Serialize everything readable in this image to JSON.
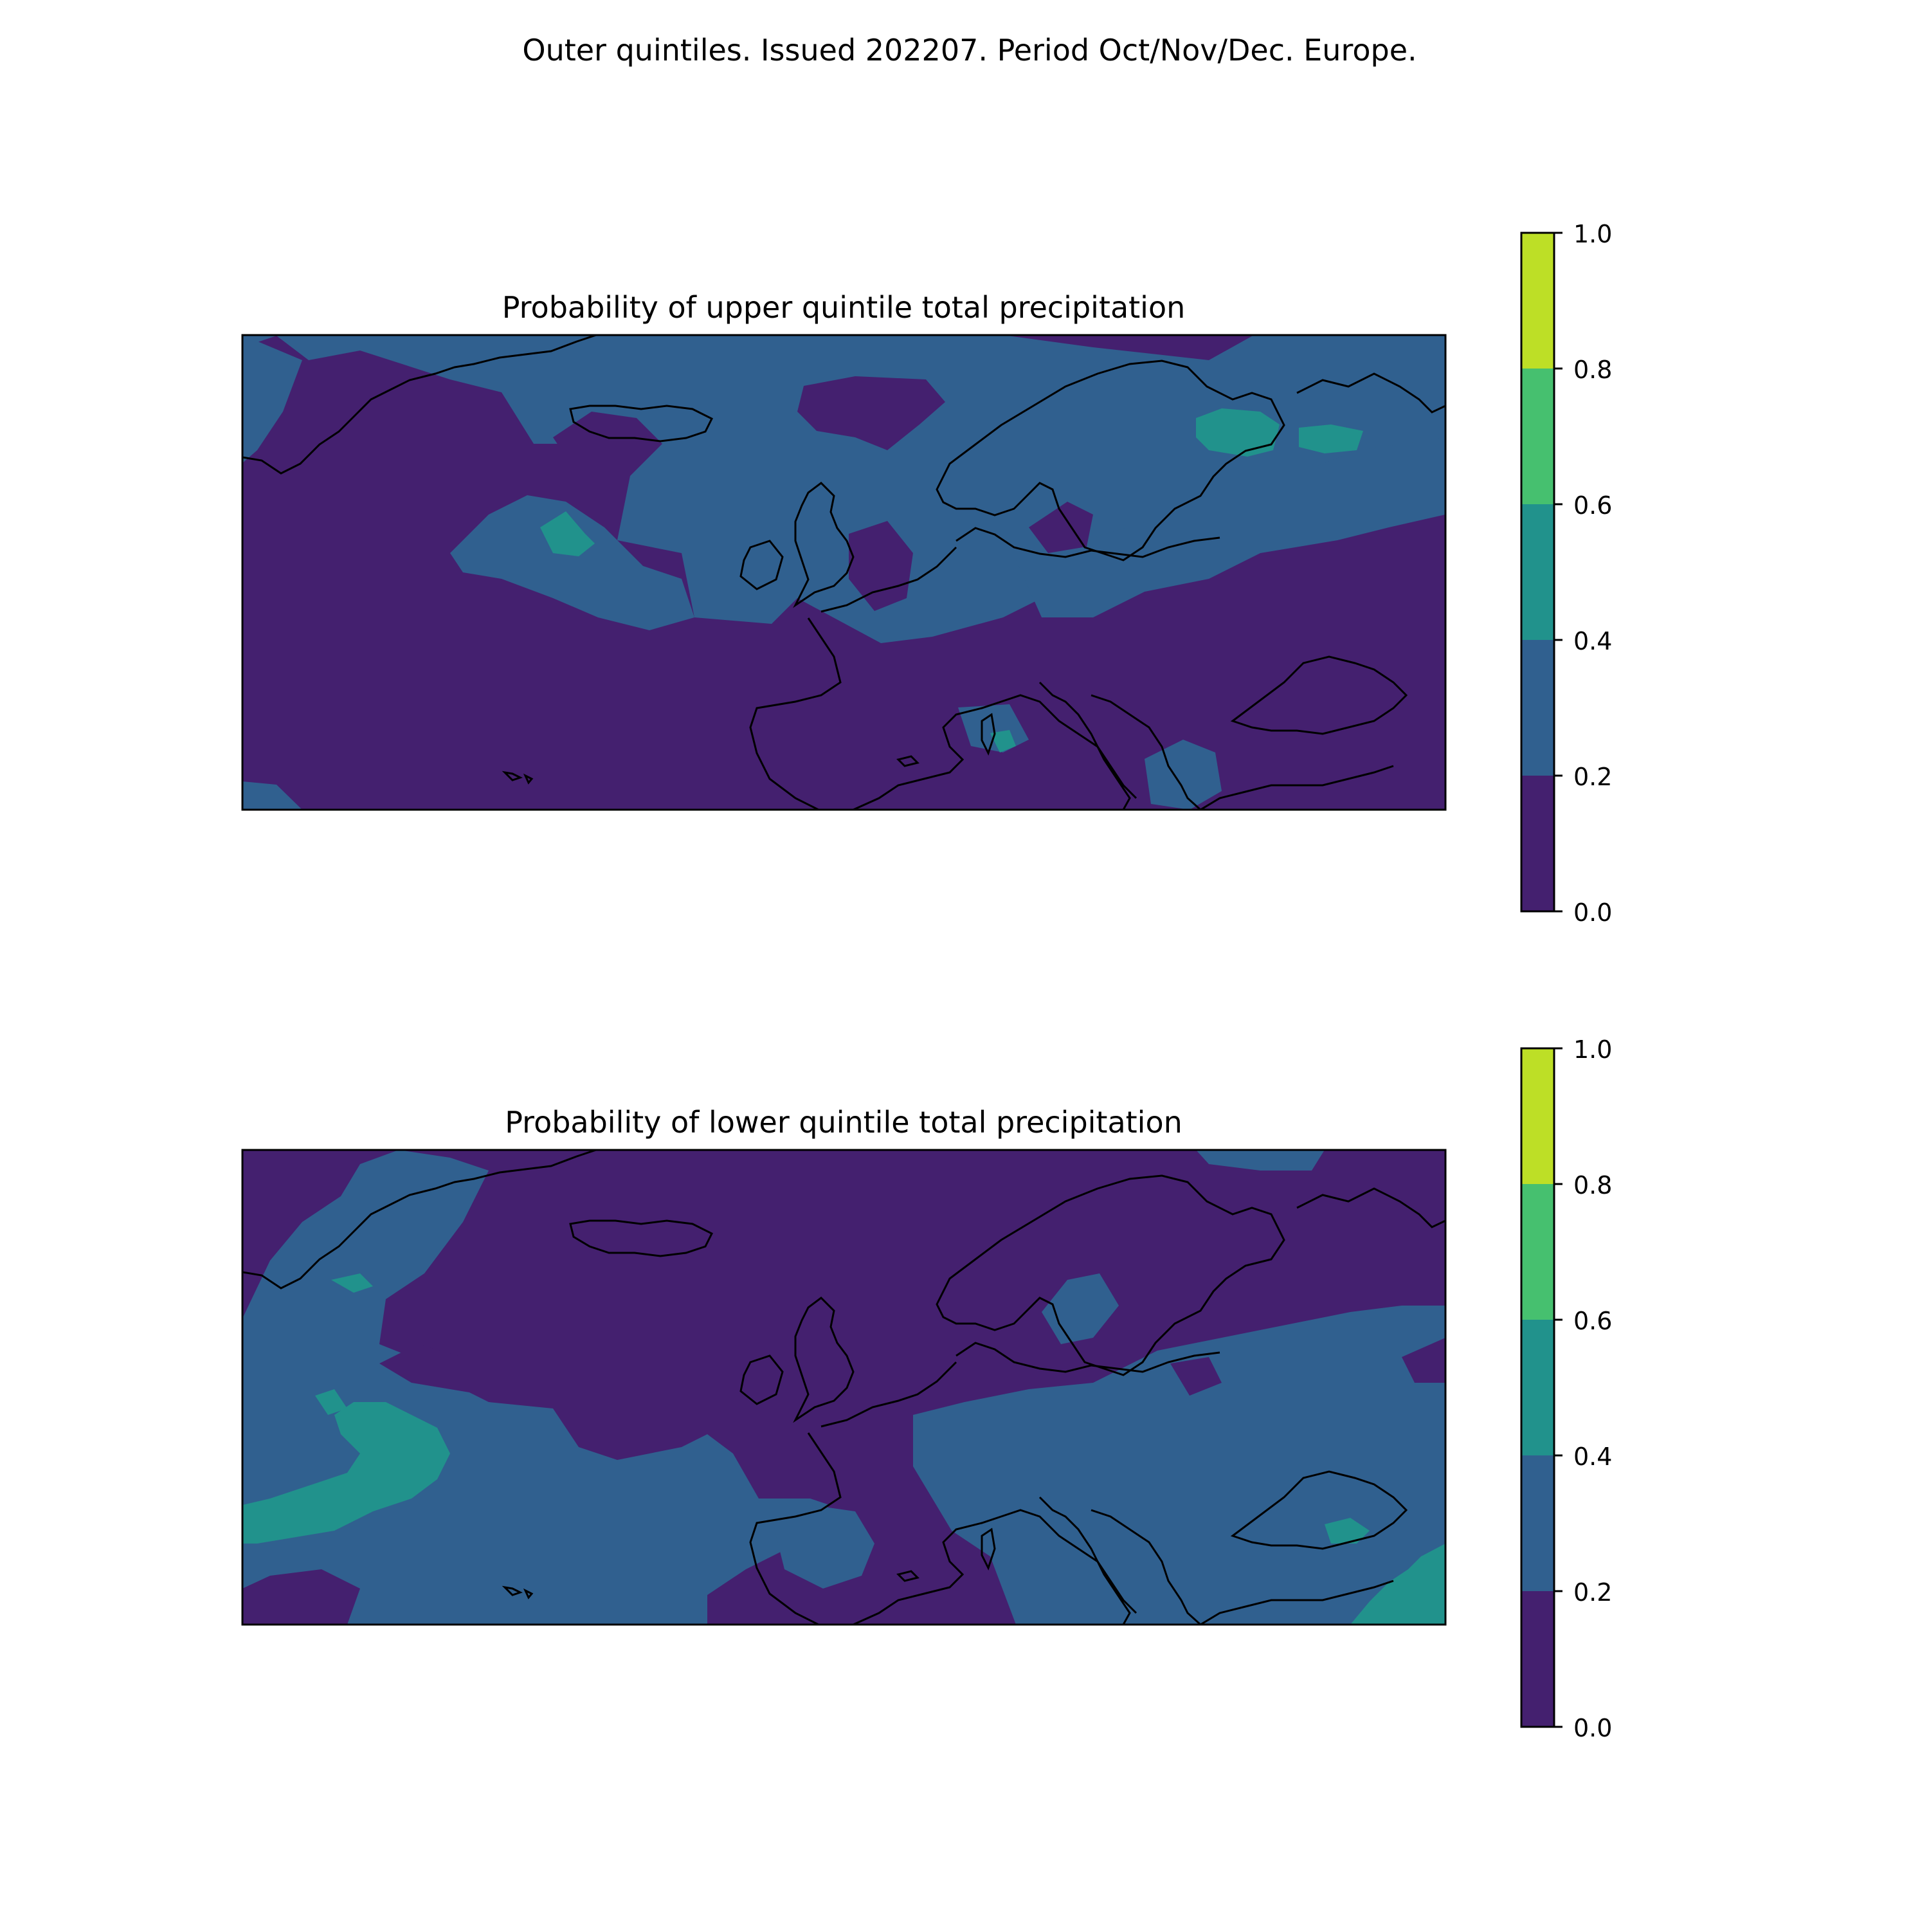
{
  "figure": {
    "suptitle": "Outer quintiles. Issued 202207. Period Oct/Nov/Dec. Europe."
  },
  "colors": {
    "levels": [
      "#44206f",
      "#30608f",
      "#21928c",
      "#46c06f",
      "#bddf26"
    ],
    "coastline": "#000000",
    "background": "#ffffff"
  },
  "panels": [
    {
      "title": "Probability of upper quintile total precipitation",
      "colorbar_ticks": [
        "0.0",
        "0.2",
        "0.4",
        "0.6",
        "0.8",
        "1.0"
      ],
      "dominant_level": "0.0-0.2",
      "notable_regions": [
        "0.2-0.4 band over northern Atlantic, Scandinavia and Baltic",
        "0.4-0.6 patches north of Scandinavia and mid-Atlantic"
      ]
    },
    {
      "title": "Probability of lower quintile total precipitation",
      "colorbar_ticks": [
        "0.0",
        "0.2",
        "0.4",
        "0.6",
        "0.8",
        "1.0"
      ],
      "dominant_level": "0.0-0.2",
      "notable_regions": [
        "0.2-0.4 over central and eastern Europe and southern Atlantic",
        "0.4-0.6 patches west of Iberia and east of Black Sea"
      ]
    }
  ]
}
